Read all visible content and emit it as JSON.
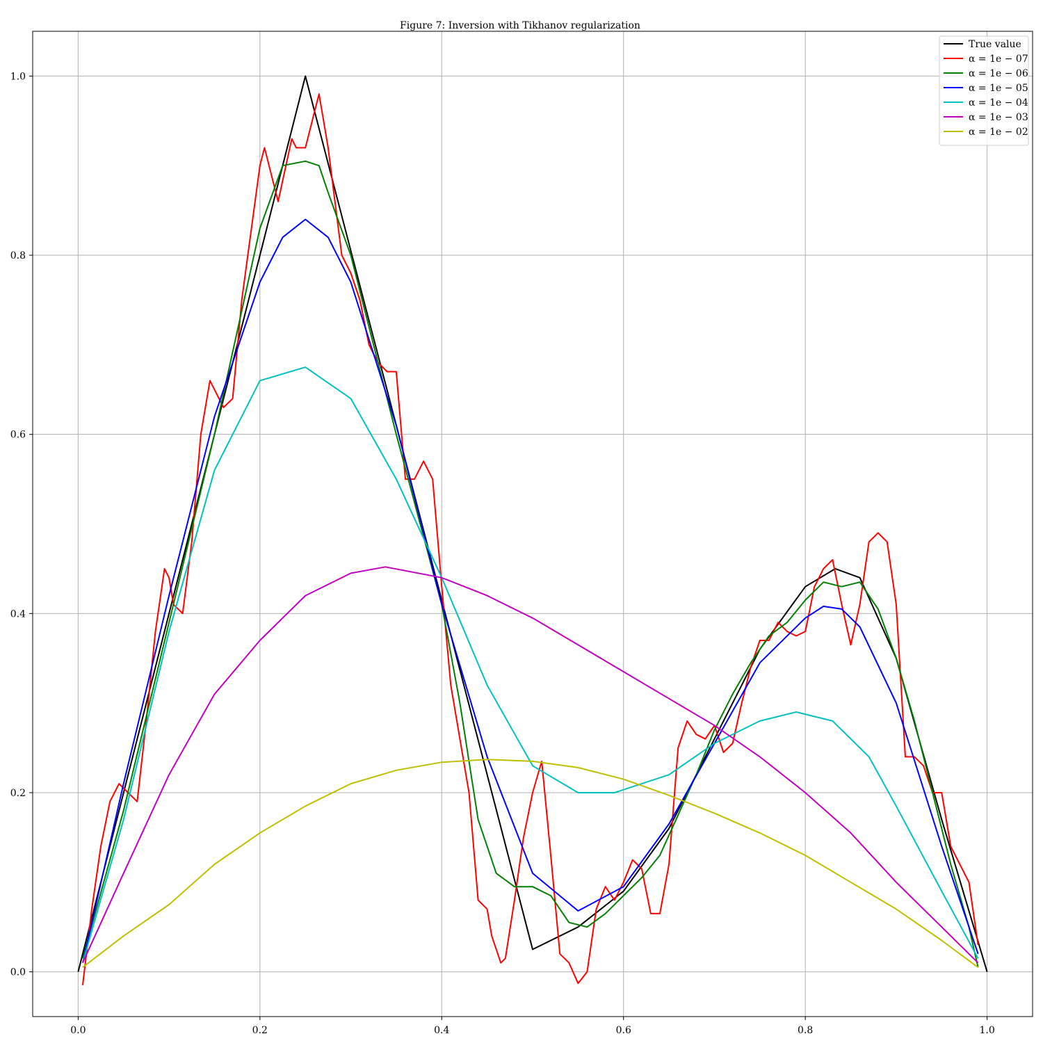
{
  "chart_data": {
    "type": "line",
    "title": "Figure 7: Inversion with Tikhanov regularization",
    "xlabel": "",
    "ylabel": "",
    "xlim": [
      -0.05,
      1.05
    ],
    "ylim": [
      -0.05,
      1.05
    ],
    "xticks": [
      0.0,
      0.2,
      0.4,
      0.6,
      0.8,
      1.0
    ],
    "xtick_labels": [
      "0.0",
      "0.2",
      "0.4",
      "0.6",
      "0.8",
      "1.0"
    ],
    "yticks": [
      0.0,
      0.2,
      0.4,
      0.6,
      0.8,
      1.0
    ],
    "ytick_labels": [
      "0.0",
      "0.2",
      "0.4",
      "0.6",
      "0.8",
      "1.0"
    ],
    "grid": true,
    "legend_position": "top-right",
    "series": [
      {
        "name": "True value",
        "color": "#000000",
        "x": [
          0.0,
          0.25,
          0.5,
          0.55,
          0.6,
          0.65,
          0.7,
          0.75,
          0.8,
          0.833,
          0.86,
          0.9,
          0.95,
          1.0
        ],
        "y": [
          0.0,
          1.0,
          0.025,
          0.05,
          0.09,
          0.16,
          0.26,
          0.36,
          0.43,
          0.45,
          0.44,
          0.35,
          0.17,
          0.0
        ]
      },
      {
        "name": "α = 1e − 07",
        "color": "#ff0000",
        "x": [
          0.005,
          0.015,
          0.025,
          0.035,
          0.045,
          0.055,
          0.065,
          0.075,
          0.085,
          0.095,
          0.1,
          0.105,
          0.115,
          0.125,
          0.135,
          0.145,
          0.16,
          0.17,
          0.18,
          0.2,
          0.205,
          0.22,
          0.235,
          0.24,
          0.25,
          0.265,
          0.275,
          0.29,
          0.3,
          0.31,
          0.32,
          0.33,
          0.34,
          0.35,
          0.36,
          0.37,
          0.38,
          0.39,
          0.4,
          0.41,
          0.43,
          0.44,
          0.45,
          0.455,
          0.465,
          0.47,
          0.48,
          0.49,
          0.5,
          0.51,
          0.52,
          0.53,
          0.54,
          0.55,
          0.56,
          0.57,
          0.58,
          0.59,
          0.6,
          0.61,
          0.62,
          0.63,
          0.64,
          0.65,
          0.66,
          0.67,
          0.68,
          0.69,
          0.7,
          0.71,
          0.72,
          0.73,
          0.74,
          0.75,
          0.76,
          0.77,
          0.78,
          0.79,
          0.8,
          0.81,
          0.82,
          0.83,
          0.84,
          0.85,
          0.86,
          0.87,
          0.88,
          0.89,
          0.9,
          0.91,
          0.92,
          0.93,
          0.94,
          0.95,
          0.96,
          0.97,
          0.98,
          0.99
        ],
        "y": [
          -0.015,
          0.07,
          0.14,
          0.19,
          0.21,
          0.2,
          0.19,
          0.28,
          0.38,
          0.45,
          0.44,
          0.41,
          0.4,
          0.48,
          0.6,
          0.66,
          0.63,
          0.64,
          0.75,
          0.9,
          0.92,
          0.86,
          0.93,
          0.92,
          0.92,
          0.98,
          0.92,
          0.8,
          0.78,
          0.75,
          0.7,
          0.68,
          0.67,
          0.67,
          0.55,
          0.55,
          0.57,
          0.55,
          0.43,
          0.32,
          0.2,
          0.08,
          0.07,
          0.04,
          0.01,
          0.015,
          0.08,
          0.15,
          0.2,
          0.235,
          0.13,
          0.02,
          0.01,
          -0.013,
          0.0,
          0.07,
          0.095,
          0.08,
          0.1,
          0.125,
          0.115,
          0.065,
          0.065,
          0.12,
          0.25,
          0.28,
          0.265,
          0.26,
          0.275,
          0.245,
          0.255,
          0.3,
          0.34,
          0.37,
          0.37,
          0.39,
          0.38,
          0.375,
          0.38,
          0.43,
          0.45,
          0.46,
          0.41,
          0.365,
          0.41,
          0.48,
          0.49,
          0.48,
          0.41,
          0.24,
          0.24,
          0.23,
          0.2,
          0.2,
          0.14,
          0.12,
          0.1,
          0.03
        ]
      },
      {
        "name": "α = 1e − 06",
        "color": "#008000",
        "x": [
          0.005,
          0.05,
          0.1,
          0.15,
          0.2,
          0.225,
          0.25,
          0.265,
          0.275,
          0.3,
          0.35,
          0.4,
          0.42,
          0.44,
          0.46,
          0.48,
          0.5,
          0.52,
          0.54,
          0.56,
          0.58,
          0.6,
          0.62,
          0.64,
          0.66,
          0.68,
          0.7,
          0.72,
          0.74,
          0.76,
          0.78,
          0.8,
          0.82,
          0.84,
          0.86,
          0.88,
          0.9,
          0.92,
          0.94,
          0.96,
          0.98,
          0.99
        ],
        "y": [
          0.015,
          0.18,
          0.39,
          0.6,
          0.83,
          0.9,
          0.905,
          0.9,
          0.87,
          0.8,
          0.6,
          0.41,
          0.3,
          0.17,
          0.11,
          0.095,
          0.095,
          0.085,
          0.055,
          0.05,
          0.065,
          0.085,
          0.105,
          0.13,
          0.175,
          0.22,
          0.27,
          0.31,
          0.345,
          0.375,
          0.39,
          0.415,
          0.435,
          0.43,
          0.435,
          0.405,
          0.35,
          0.28,
          0.2,
          0.12,
          0.05,
          0.005
        ]
      },
      {
        "name": "α = 1e − 05",
        "color": "#0000ff",
        "x": [
          0.005,
          0.05,
          0.1,
          0.15,
          0.2,
          0.225,
          0.25,
          0.275,
          0.3,
          0.35,
          0.4,
          0.45,
          0.5,
          0.55,
          0.6,
          0.65,
          0.7,
          0.75,
          0.8,
          0.82,
          0.84,
          0.86,
          0.9,
          0.95,
          0.99
        ],
        "y": [
          0.01,
          0.21,
          0.42,
          0.62,
          0.77,
          0.82,
          0.84,
          0.82,
          0.77,
          0.61,
          0.41,
          0.24,
          0.11,
          0.068,
          0.095,
          0.165,
          0.255,
          0.345,
          0.395,
          0.408,
          0.405,
          0.385,
          0.3,
          0.14,
          0.02
        ]
      },
      {
        "name": "α = 1e − 04",
        "color": "#00c0c0",
        "x": [
          0.005,
          0.05,
          0.1,
          0.15,
          0.2,
          0.25,
          0.3,
          0.35,
          0.4,
          0.45,
          0.5,
          0.55,
          0.59,
          0.65,
          0.7,
          0.75,
          0.79,
          0.83,
          0.87,
          0.9,
          0.95,
          0.99
        ],
        "y": [
          0.01,
          0.17,
          0.38,
          0.56,
          0.66,
          0.675,
          0.64,
          0.55,
          0.44,
          0.32,
          0.23,
          0.2,
          0.2,
          0.22,
          0.255,
          0.28,
          0.29,
          0.28,
          0.24,
          0.185,
          0.09,
          0.015
        ]
      },
      {
        "name": "α = 1e − 03",
        "color": "#c000c0",
        "x": [
          0.005,
          0.05,
          0.1,
          0.15,
          0.2,
          0.25,
          0.3,
          0.338,
          0.4,
          0.45,
          0.5,
          0.55,
          0.6,
          0.65,
          0.7,
          0.75,
          0.8,
          0.85,
          0.9,
          0.95,
          0.99
        ],
        "y": [
          0.01,
          0.11,
          0.22,
          0.31,
          0.37,
          0.42,
          0.445,
          0.452,
          0.44,
          0.42,
          0.395,
          0.365,
          0.335,
          0.305,
          0.275,
          0.24,
          0.2,
          0.155,
          0.1,
          0.05,
          0.01
        ]
      },
      {
        "name": "α = 1e − 02",
        "color": "#bfbf00",
        "x": [
          0.005,
          0.05,
          0.1,
          0.15,
          0.2,
          0.25,
          0.3,
          0.35,
          0.4,
          0.45,
          0.5,
          0.55,
          0.6,
          0.65,
          0.7,
          0.75,
          0.8,
          0.85,
          0.9,
          0.95,
          0.99
        ],
        "y": [
          0.005,
          0.04,
          0.075,
          0.12,
          0.155,
          0.185,
          0.21,
          0.225,
          0.234,
          0.237,
          0.235,
          0.228,
          0.215,
          0.197,
          0.177,
          0.155,
          0.13,
          0.1,
          0.07,
          0.035,
          0.005
        ]
      }
    ]
  }
}
